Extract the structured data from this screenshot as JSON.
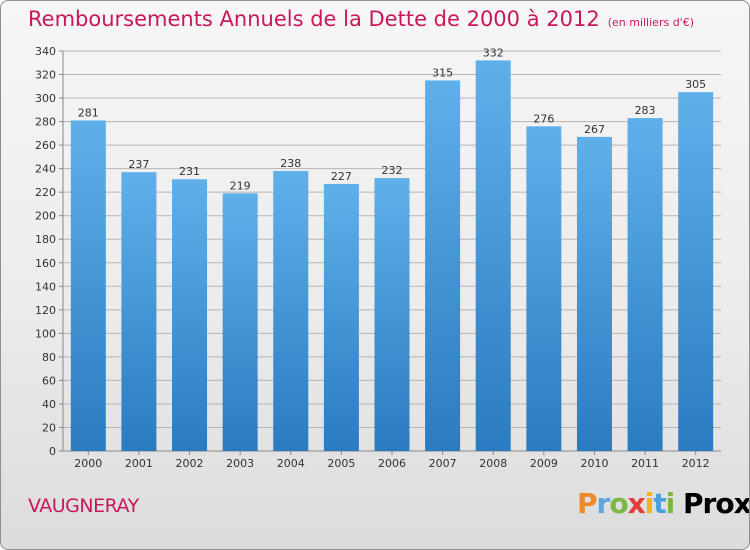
{
  "title": "Remboursements Annuels de la Dette de 2000 à 2012",
  "subtitle": "(en milliers d'€)",
  "place": "VAUGNERAY",
  "logo": "Proxiti",
  "colors": {
    "title": "#c8175d",
    "bar_top": "#5fb0ea",
    "bar_bottom": "#2a7bc1",
    "grid": "#b5b5b5"
  },
  "chart_data": {
    "type": "bar",
    "title": "Remboursements Annuels de la Dette de 2000 à 2012",
    "xlabel": "",
    "ylabel": "",
    "categories": [
      "2000",
      "2001",
      "2002",
      "2003",
      "2004",
      "2005",
      "2006",
      "2007",
      "2008",
      "2009",
      "2010",
      "2011",
      "2012"
    ],
    "values": [
      281,
      237,
      231,
      219,
      238,
      227,
      232,
      315,
      332,
      276,
      267,
      283,
      305
    ],
    "ylim": [
      0,
      340
    ],
    "yticks": [
      0,
      20,
      40,
      60,
      80,
      100,
      120,
      140,
      160,
      180,
      200,
      220,
      240,
      260,
      280,
      300,
      320,
      340
    ],
    "grid": true
  }
}
